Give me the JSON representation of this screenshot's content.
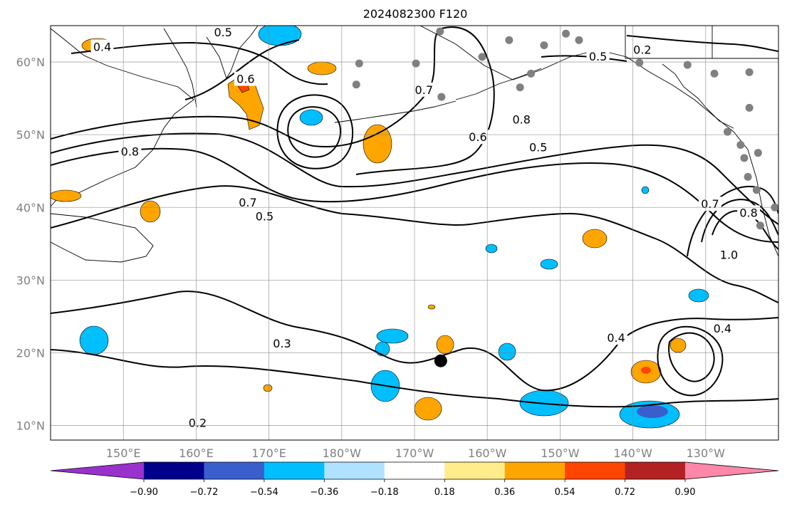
{
  "title": "2024082300 F120",
  "map": {
    "lat_labels": [
      "60°N",
      "50°N",
      "40°N",
      "30°N",
      "20°N",
      "10°N"
    ],
    "lat_values": [
      60,
      50,
      40,
      30,
      20,
      10
    ],
    "lon_labels": [
      "150°E",
      "160°E",
      "170°E",
      "180°W",
      "170°W",
      "160°W",
      "150°W",
      "140°W",
      "130°W"
    ],
    "lon_values": [
      150,
      160,
      170,
      180,
      190,
      200,
      210,
      220,
      230
    ],
    "lon_range": [
      140,
      240
    ],
    "lat_range": [
      8,
      65
    ],
    "grid": true,
    "contour_color": "#000000",
    "contour_labels": [
      {
        "text": "0.2",
        "lon": 160.2,
        "lat": 10.3
      },
      {
        "text": "0.3",
        "lon": 171.8,
        "lat": 21.2
      },
      {
        "text": "0.4",
        "lon": 232.3,
        "lat": 23.3
      },
      {
        "text": "0.4",
        "lon": 217.7,
        "lat": 22.0
      },
      {
        "text": "0.5",
        "lon": 169.4,
        "lat": 38.7
      },
      {
        "text": "0.7",
        "lon": 167.1,
        "lat": 40.6
      },
      {
        "text": "0.8",
        "lon": 150.9,
        "lat": 47.6
      },
      {
        "text": "0.6",
        "lon": 166.8,
        "lat": 57.6
      },
      {
        "text": "0.4",
        "lon": 147.1,
        "lat": 62.0
      },
      {
        "text": "0.5",
        "lon": 163.7,
        "lat": 64.0
      },
      {
        "text": "0.6",
        "lon": 198.7,
        "lat": 49.6
      },
      {
        "text": "0.5",
        "lon": 207.0,
        "lat": 48.2
      },
      {
        "text": "0.8",
        "lon": 204.7,
        "lat": 52.0
      },
      {
        "text": "0.7",
        "lon": 191.3,
        "lat": 56.1
      },
      {
        "text": "0.2",
        "lon": 221.3,
        "lat": 61.6
      },
      {
        "text": "0.5",
        "lon": 215.2,
        "lat": 60.7
      },
      {
        "text": "1.0",
        "lon": 233.2,
        "lat": 33.4
      },
      {
        "text": "0.7",
        "lon": 230.6,
        "lat": 40.4
      },
      {
        "text": "0.8",
        "lon": 235.9,
        "lat": 39.2
      }
    ],
    "gray_dots": [
      {
        "lon": 193.5,
        "lat": 64.2
      },
      {
        "lon": 203.0,
        "lat": 63.0
      },
      {
        "lon": 207.8,
        "lat": 62.3
      },
      {
        "lon": 210.8,
        "lat": 63.9
      },
      {
        "lon": 212.6,
        "lat": 63.0
      },
      {
        "lon": 199.3,
        "lat": 60.7
      },
      {
        "lon": 190.2,
        "lat": 59.8
      },
      {
        "lon": 182.0,
        "lat": 56.9
      },
      {
        "lon": 182.4,
        "lat": 59.8
      },
      {
        "lon": 206.0,
        "lat": 58.4
      },
      {
        "lon": 204.5,
        "lat": 56.5
      },
      {
        "lon": 193.7,
        "lat": 55.2
      },
      {
        "lon": 220.9,
        "lat": 59.9
      },
      {
        "lon": 227.5,
        "lat": 59.6
      },
      {
        "lon": 231.2,
        "lat": 58.4
      },
      {
        "lon": 236.0,
        "lat": 58.6
      },
      {
        "lon": 236.0,
        "lat": 53.7
      },
      {
        "lon": 233.0,
        "lat": 50.4
      },
      {
        "lon": 234.8,
        "lat": 48.6
      },
      {
        "lon": 237.2,
        "lat": 47.5
      },
      {
        "lon": 235.3,
        "lat": 46.8
      },
      {
        "lon": 235.8,
        "lat": 44.2
      },
      {
        "lon": 237.0,
        "lat": 42.4
      },
      {
        "lon": 239.5,
        "lat": 40.0
      },
      {
        "lon": 237.5,
        "lat": 37.5
      }
    ],
    "black_dot": {
      "lon": 193.6,
      "lat": 18.9
    }
  },
  "colorbar": {
    "levels": [
      "−0.90",
      "−0.72",
      "−0.54",
      "−0.36",
      "−0.18",
      "0.18",
      "0.36",
      "0.54",
      "0.72",
      "0.90"
    ],
    "colors": [
      "#9932cc",
      "#00008b",
      "#3a5fcd",
      "#00bfff",
      "#b0e2ff",
      "#ffffff",
      "#ffec8b",
      "#ffa500",
      "#ff4500",
      "#b22222",
      "#ff88aa"
    ]
  },
  "chart_data": {
    "type": "map-contour",
    "title": "2024082300 F120",
    "x": {
      "range": [
        140,
        240
      ],
      "ticks": [
        "150°E",
        "160°E",
        "170°E",
        "180°W",
        "170°W",
        "160°W",
        "150°W",
        "140°W",
        "130°W"
      ]
    },
    "y": {
      "range": [
        8,
        65
      ],
      "ticks": [
        "10°N",
        "20°N",
        "30°N",
        "40°N",
        "50°N",
        "60°N"
      ]
    },
    "colorbar_levels": [
      -0.9,
      -0.72,
      -0.54,
      -0.36,
      -0.18,
      0.18,
      0.36,
      0.54,
      0.72,
      0.9
    ],
    "legend": "bottom"
  }
}
